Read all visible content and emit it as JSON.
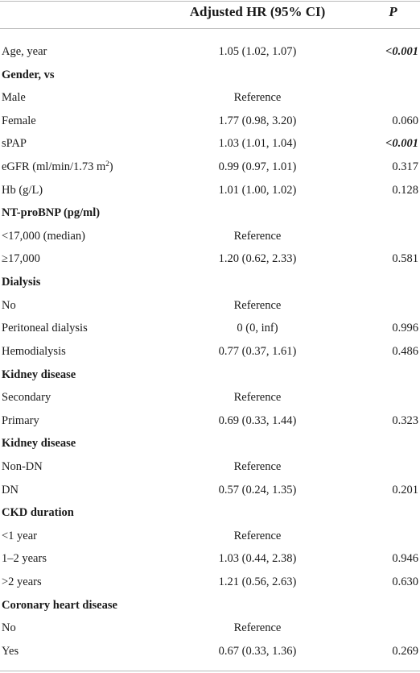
{
  "header": {
    "estimate": "Adjusted HR (95% CI)",
    "pvalue": "P"
  },
  "rows": [
    {
      "label": "Age, year",
      "value": "1.05 (1.02, 1.07)",
      "p": "<0.001",
      "section": false,
      "sig": true
    },
    {
      "label": "Gender, vs",
      "value": "",
      "p": "",
      "section": true,
      "sig": false
    },
    {
      "label": "Male",
      "value": "Reference",
      "p": "",
      "section": false,
      "sig": false
    },
    {
      "label": "Female",
      "value": "1.77 (0.98, 3.20)",
      "p": "0.060",
      "section": false,
      "sig": false
    },
    {
      "label": "sPAP",
      "value": "1.03 (1.01, 1.04)",
      "p": "<0.001",
      "section": false,
      "sig": true
    },
    {
      "label": "eGFR (ml/min/1.73 m",
      "label_sup": "2",
      "label_tail": ")",
      "value": "0.99 (0.97, 1.01)",
      "p": "0.317",
      "section": false,
      "sig": false
    },
    {
      "label": "Hb (g/L)",
      "value": "1.01 (1.00, 1.02)",
      "p": "0.128",
      "section": false,
      "sig": false
    },
    {
      "label": "NT-proBNP (pg/ml)",
      "value": "",
      "p": "",
      "section": true,
      "sig": false
    },
    {
      "label": "<17,000 (median)",
      "value": "Reference",
      "p": "",
      "section": false,
      "sig": false
    },
    {
      "label": "≥17,000",
      "value": "1.20 (0.62, 2.33)",
      "p": "0.581",
      "section": false,
      "sig": false
    },
    {
      "label": "Dialysis",
      "value": "",
      "p": "",
      "section": true,
      "sig": false
    },
    {
      "label": "No",
      "value": "Reference",
      "p": "",
      "section": false,
      "sig": false
    },
    {
      "label": "Peritoneal dialysis",
      "value": "0 (0, inf)",
      "p": "0.996",
      "section": false,
      "sig": false
    },
    {
      "label": "Hemodialysis",
      "value": "0.77 (0.37, 1.61)",
      "p": "0.486",
      "section": false,
      "sig": false
    },
    {
      "label": "Kidney disease",
      "value": "",
      "p": "",
      "section": true,
      "sig": false
    },
    {
      "label": "Secondary",
      "value": "Reference",
      "p": "",
      "section": false,
      "sig": false
    },
    {
      "label": "Primary",
      "value": "0.69 (0.33, 1.44)",
      "p": "0.323",
      "section": false,
      "sig": false
    },
    {
      "label": "Kidney disease",
      "value": "",
      "p": "",
      "section": true,
      "sig": false
    },
    {
      "label": "Non-DN",
      "value": "Reference",
      "p": "",
      "section": false,
      "sig": false
    },
    {
      "label": "DN",
      "value": "0.57 (0.24, 1.35)",
      "p": "0.201",
      "section": false,
      "sig": false
    },
    {
      "label": "CKD duration",
      "value": "",
      "p": "",
      "section": true,
      "sig": false
    },
    {
      "label": "<1 year",
      "value": "Reference",
      "p": "",
      "section": false,
      "sig": false
    },
    {
      "label": "1–2 years",
      "value": "1.03 (0.44, 2.38)",
      "p": "0.946",
      "section": false,
      "sig": false
    },
    {
      "label": ">2 years",
      "value": "1.21 (0.56, 2.63)",
      "p": "0.630",
      "section": false,
      "sig": false
    },
    {
      "label": "Coronary heart disease",
      "value": "",
      "p": "",
      "section": true,
      "sig": false
    },
    {
      "label": "No",
      "value": "Reference",
      "p": "",
      "section": false,
      "sig": false
    },
    {
      "label": "Yes",
      "value": "0.67 (0.33, 1.36)",
      "p": "0.269",
      "section": false,
      "sig": false
    }
  ]
}
